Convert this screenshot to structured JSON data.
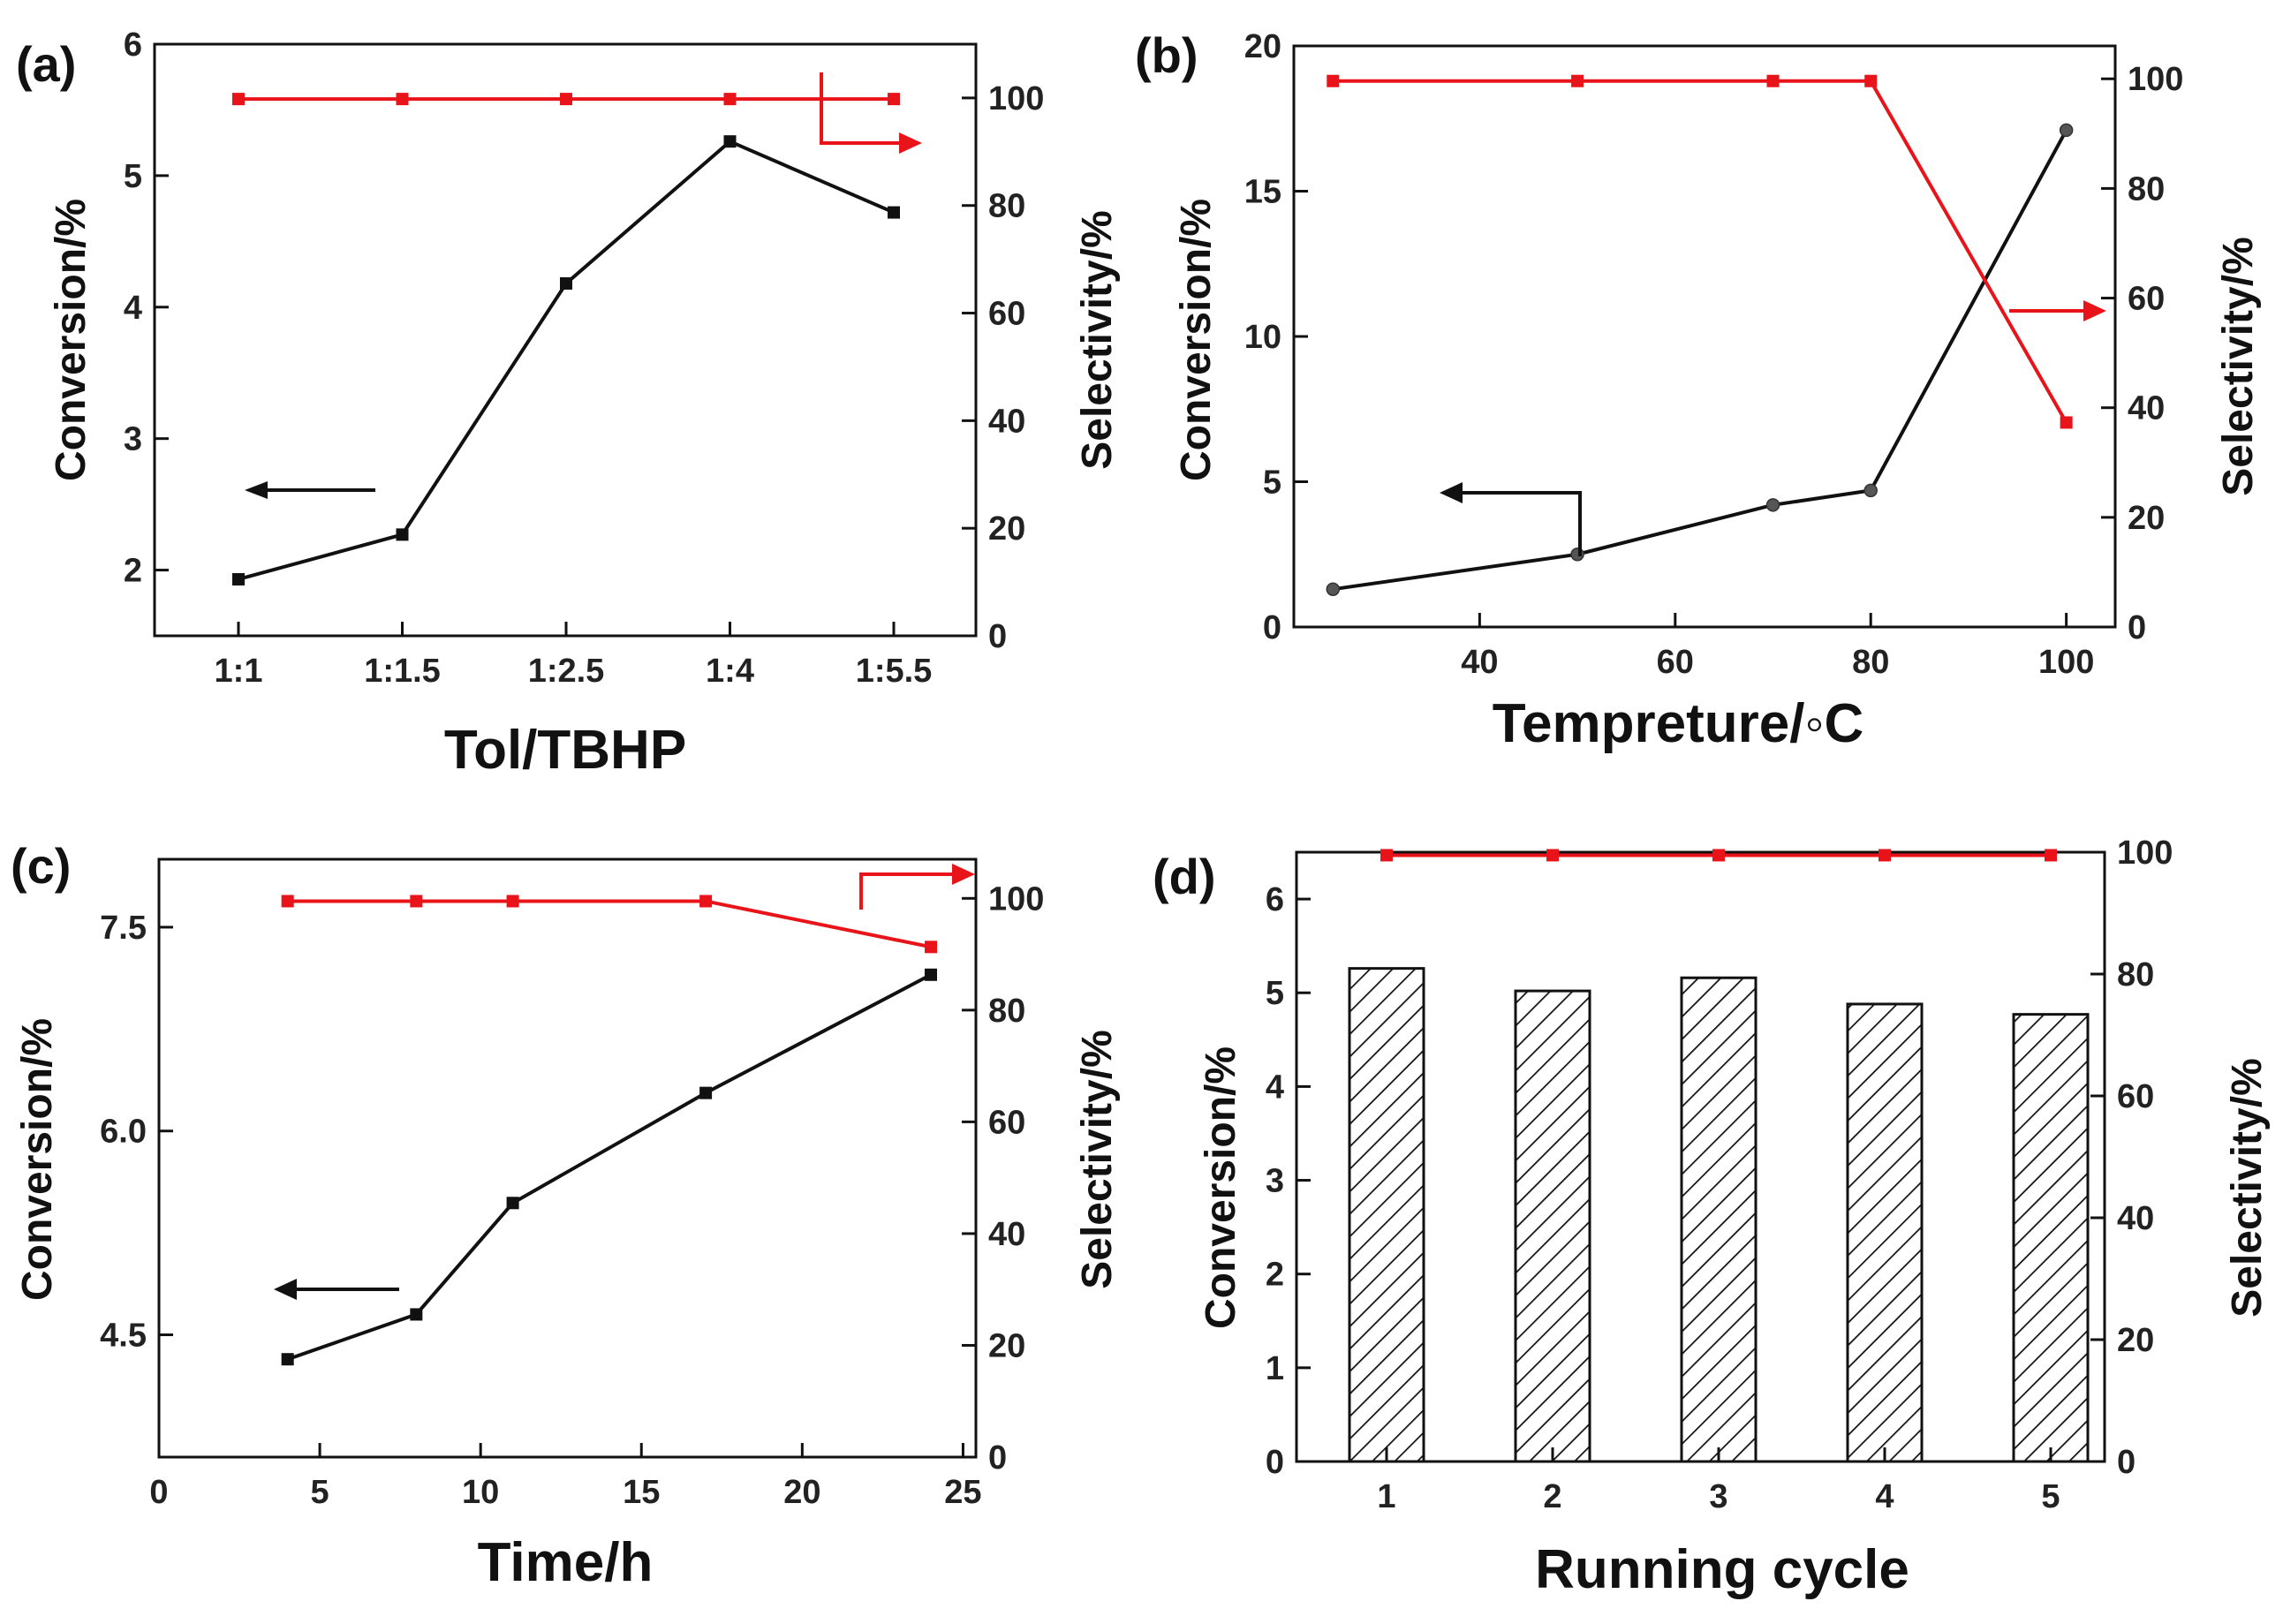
{
  "chart_data": [
    {
      "panel": "(a)",
      "type": "line",
      "xlabel": "Tol/TBHP",
      "ylabel": "Conversion/%",
      "y2label": "Selectivity/%",
      "categories": [
        "1:1",
        "1:1.5",
        "1:2.5",
        "1:4",
        "1:5.5"
      ],
      "ylim": [
        1.5,
        6
      ],
      "yticks": [
        2,
        3,
        4,
        5,
        6
      ],
      "y2lim": [
        0,
        110
      ],
      "y2ticks": [
        0,
        20,
        40,
        60,
        80,
        100
      ],
      "series": [
        {
          "name": "Conversion",
          "axis": "left",
          "color": "#111111",
          "marker": "square",
          "values": [
            1.93,
            2.27,
            4.18,
            5.26,
            4.72
          ]
        },
        {
          "name": "Selectivity",
          "axis": "right",
          "color": "#e8141a",
          "marker": "square",
          "values": [
            99.8,
            99.8,
            99.8,
            99.8,
            99.8
          ]
        }
      ]
    },
    {
      "panel": "(b)",
      "type": "line",
      "xlabel": "Tempreture/◦C",
      "ylabel": "Conversion/%",
      "y2label": "Selectivity/%",
      "x": [
        25,
        50,
        70,
        80,
        100
      ],
      "xlim": [
        21,
        105
      ],
      "xticks": [
        40,
        60,
        80,
        100
      ],
      "ylim": [
        0,
        20
      ],
      "yticks": [
        0,
        5,
        10,
        15,
        20
      ],
      "y2lim": [
        0,
        106
      ],
      "y2ticks": [
        0,
        20,
        40,
        60,
        80,
        100
      ],
      "series": [
        {
          "name": "Conversion",
          "axis": "left",
          "color": "#111111",
          "marker": "circle",
          "values": [
            1.3,
            2.5,
            4.2,
            4.7,
            17.1
          ]
        },
        {
          "name": "Selectivity",
          "axis": "right",
          "color": "#e8141a",
          "marker": "square",
          "values": [
            99.6,
            99.6,
            99.6,
            99.6,
            37.3
          ]
        }
      ]
    },
    {
      "panel": "(c)",
      "type": "line",
      "xlabel": "Time/h",
      "ylabel": "Conversion/%",
      "y2label": "Selectivity/%",
      "x": [
        4,
        8,
        11,
        17,
        24
      ],
      "xlim": [
        0,
        25.4
      ],
      "xticks": [
        0,
        5,
        10,
        15,
        20,
        25
      ],
      "ylim": [
        3.6,
        8.0
      ],
      "yticks": [
        4.5,
        6.0,
        7.5
      ],
      "ytickformat": "1dp",
      "y2lim": [
        0,
        107
      ],
      "y2ticks": [
        0,
        20,
        40,
        60,
        80,
        100
      ],
      "series": [
        {
          "name": "Conversion",
          "axis": "left",
          "color": "#111111",
          "marker": "square",
          "values": [
            4.32,
            4.65,
            5.47,
            6.28,
            7.15
          ]
        },
        {
          "name": "Selectivity",
          "axis": "right",
          "color": "#e8141a",
          "marker": "square",
          "values": [
            99.5,
            99.5,
            99.5,
            99.5,
            91.3
          ]
        }
      ]
    },
    {
      "panel": "(d)",
      "type": "bar",
      "xlabel": "Running cycle",
      "ylabel": "Conversion/%",
      "y2label": "Selectivity/%",
      "categories": [
        "1",
        "2",
        "3",
        "4",
        "5"
      ],
      "ylim": [
        0,
        6.5
      ],
      "yticks": [
        0,
        1,
        2,
        3,
        4,
        5,
        6
      ],
      "y2lim": [
        0,
        100
      ],
      "y2ticks": [
        0,
        20,
        40,
        60,
        80,
        100
      ],
      "bars": {
        "name": "Conversion",
        "axis": "left",
        "fill": "hatched",
        "values": [
          5.26,
          5.02,
          5.16,
          4.88,
          4.77
        ]
      },
      "series": [
        {
          "name": "Selectivity",
          "axis": "right",
          "color": "#e8141a",
          "marker": "square",
          "values": [
            99.5,
            99.5,
            99.5,
            99.5,
            99.5
          ]
        }
      ]
    }
  ]
}
